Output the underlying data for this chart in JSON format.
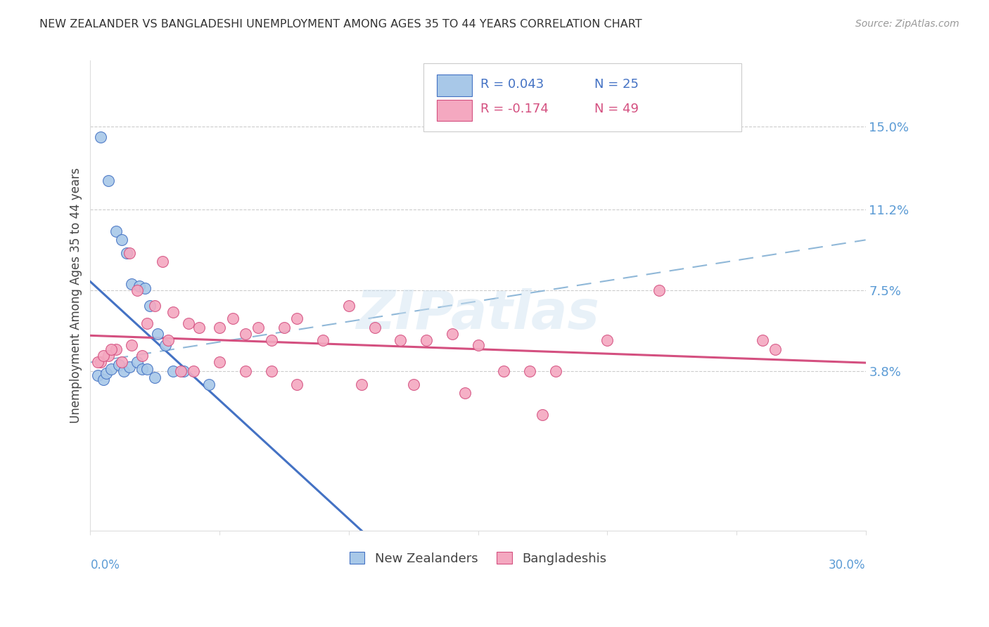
{
  "title": "NEW ZEALANDER VS BANGLADESHI UNEMPLOYMENT AMONG AGES 35 TO 44 YEARS CORRELATION CHART",
  "source": "Source: ZipAtlas.com",
  "ylabel": "Unemployment Among Ages 35 to 44 years",
  "ytick_values": [
    3.8,
    7.5,
    11.2,
    15.0
  ],
  "xlim": [
    0.0,
    30.0
  ],
  "ylim": [
    -3.5,
    18.0
  ],
  "r1": "R = 0.043",
  "n1": "N = 25",
  "r2": "R = -0.174",
  "n2": "N = 49",
  "legend1_label": "New Zealanders",
  "legend2_label": "Bangladeshis",
  "color_nz": "#a8c8e8",
  "color_bd": "#f4a8c0",
  "line_color_nz": "#4472c4",
  "line_color_bd": "#d45080",
  "line_dash_color": "#90b8d8",
  "background_color": "#ffffff",
  "watermark": "ZIPatlas",
  "nz_x": [
    0.4,
    0.7,
    1.0,
    1.2,
    1.4,
    1.6,
    1.9,
    2.1,
    2.3,
    2.6,
    2.9,
    3.2,
    3.6,
    4.6,
    0.3,
    0.5,
    0.6,
    0.8,
    1.1,
    1.3,
    1.5,
    1.8,
    2.0,
    2.2,
    2.5
  ],
  "nz_y": [
    14.5,
    12.5,
    10.2,
    9.8,
    9.2,
    7.8,
    7.7,
    7.6,
    6.8,
    5.5,
    5.0,
    3.8,
    3.8,
    3.2,
    3.6,
    3.4,
    3.7,
    3.9,
    4.1,
    3.8,
    4.0,
    4.2,
    3.9,
    3.9,
    3.5
  ],
  "bd_x": [
    0.4,
    0.7,
    1.0,
    1.5,
    1.8,
    2.2,
    2.8,
    3.2,
    3.8,
    4.2,
    5.0,
    5.5,
    6.0,
    6.5,
    7.0,
    7.5,
    8.0,
    9.0,
    10.0,
    11.0,
    12.0,
    13.0,
    14.0,
    15.0,
    16.0,
    17.0,
    18.0,
    20.0,
    22.0,
    26.0,
    0.3,
    0.5,
    0.8,
    1.2,
    1.6,
    2.0,
    2.5,
    3.0,
    3.5,
    4.0,
    5.0,
    6.0,
    7.0,
    8.0,
    10.5,
    12.5,
    14.5,
    17.5,
    26.5
  ],
  "bd_y": [
    4.2,
    4.5,
    4.8,
    9.2,
    7.5,
    6.0,
    8.8,
    6.5,
    6.0,
    5.8,
    5.8,
    6.2,
    5.5,
    5.8,
    5.2,
    5.8,
    6.2,
    5.2,
    6.8,
    5.8,
    5.2,
    5.2,
    5.5,
    5.0,
    3.8,
    3.8,
    3.8,
    5.2,
    7.5,
    5.2,
    4.2,
    4.5,
    4.8,
    4.2,
    5.0,
    4.5,
    6.8,
    5.2,
    3.8,
    3.8,
    4.2,
    3.8,
    3.8,
    3.2,
    3.2,
    3.2,
    2.8,
    1.8,
    4.8
  ]
}
